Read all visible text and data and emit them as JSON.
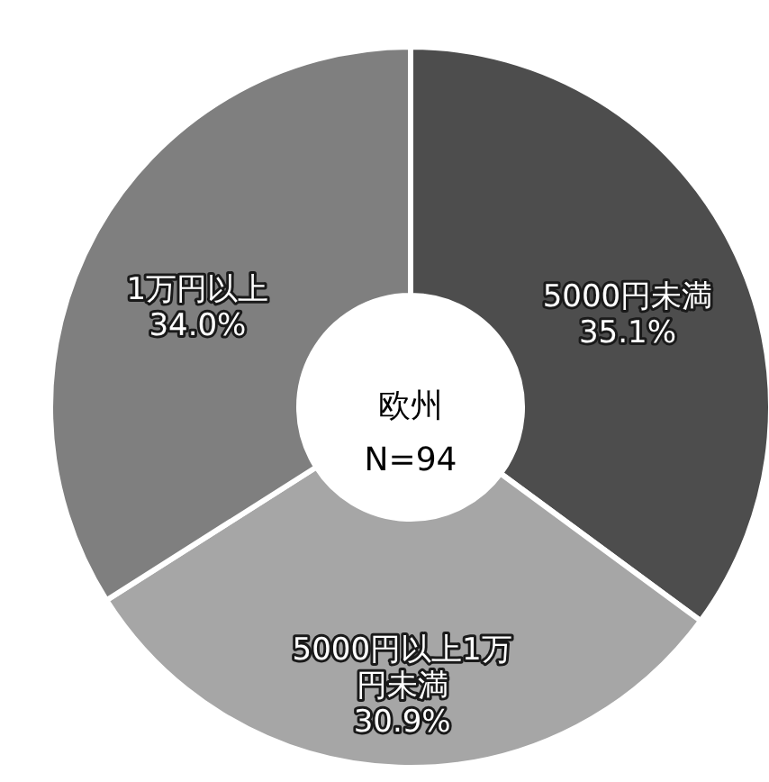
{
  "chart_data": {
    "type": "donut",
    "title": "欧州",
    "subtitle": "N=94",
    "categories": [
      "5000円未満",
      "5000円以上1万円未満",
      "1万円以上"
    ],
    "values": [
      35.1,
      30.9,
      34.0
    ],
    "colors": [
      "#4d4d4d",
      "#a6a6a6",
      "#7f7f7f"
    ],
    "value_labels": [
      "35.1%",
      "30.9%",
      "34.0%"
    ],
    "legend": false
  }
}
